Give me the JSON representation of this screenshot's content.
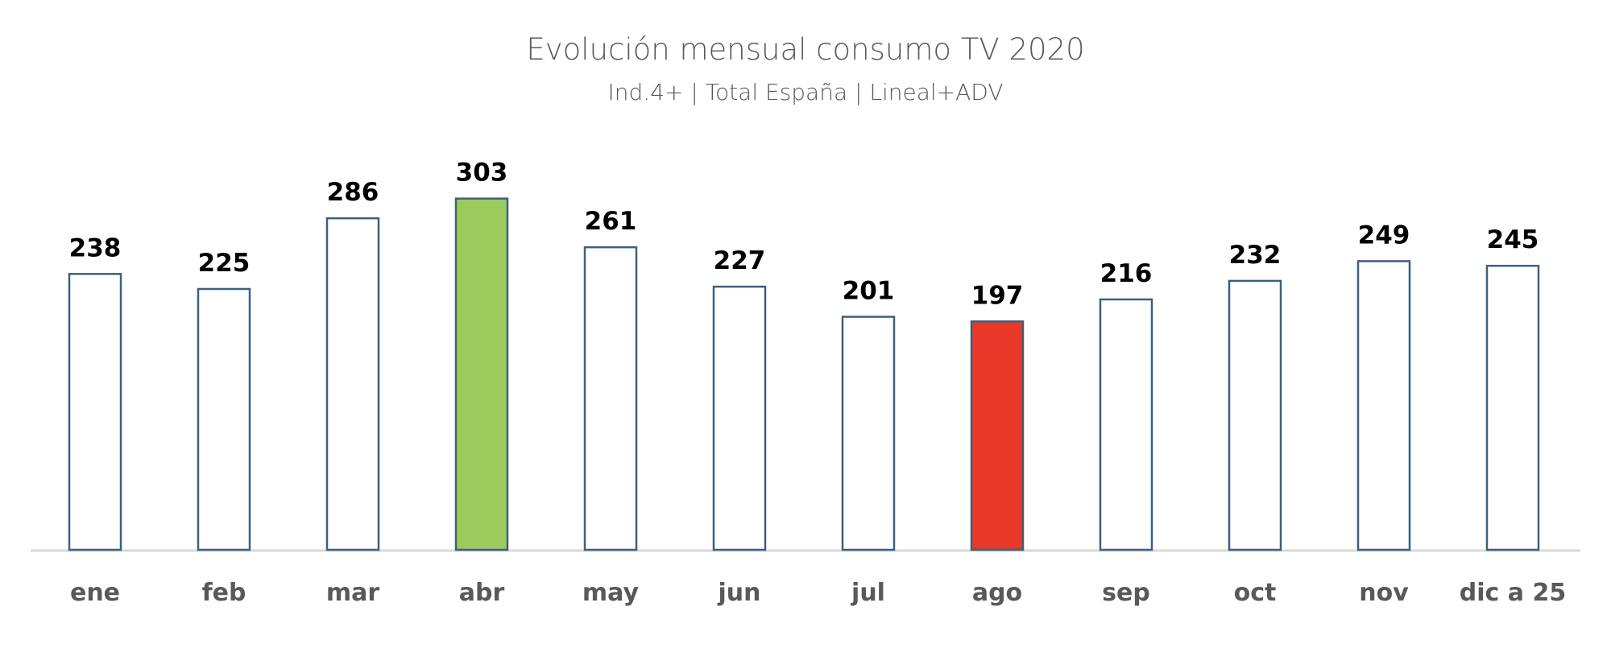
{
  "chart_data": {
    "type": "bar",
    "title": "Evolución mensual consumo TV 2020",
    "subtitle": "Ind.4+ | Total España | Lineal+ADV",
    "categories": [
      "ene",
      "feb",
      "mar",
      "abr",
      "may",
      "jun",
      "jul",
      "ago",
      "sep",
      "oct",
      "nov",
      "dic a 25"
    ],
    "values": [
      238,
      225,
      286,
      303,
      261,
      227,
      201,
      197,
      216,
      232,
      249,
      245
    ],
    "highlight": {
      "max": {
        "category": "abr",
        "color": "#9ccb5c"
      },
      "min": {
        "category": "ago",
        "color": "#e8392a"
      }
    },
    "default_fill": "#ffffff",
    "bar_outline": "#3d6080",
    "ylim": [
      0,
      303
    ],
    "grid": false,
    "legend": "none",
    "data_labels": true,
    "y_axis_visible": false
  }
}
